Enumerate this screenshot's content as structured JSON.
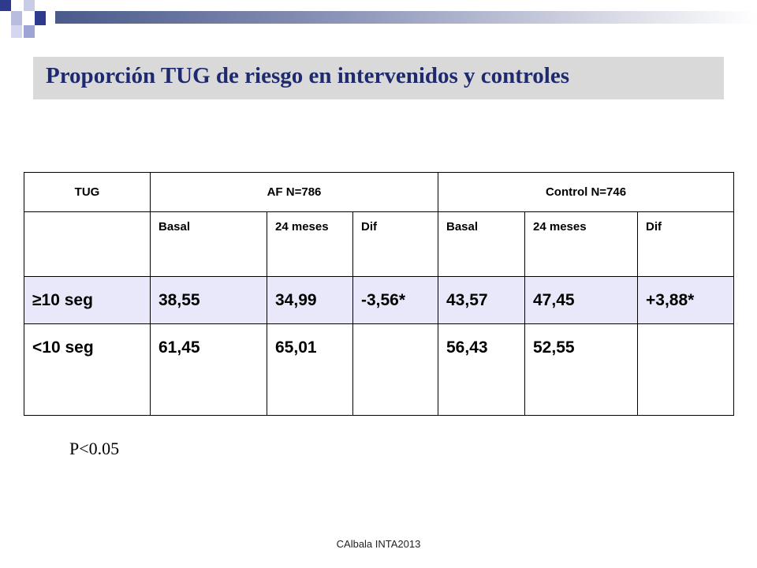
{
  "title": "Proporción TUG de riesgo en intervenidos y controles",
  "table": {
    "header": [
      "TUG",
      "AF N=786",
      "Control N=746"
    ],
    "subheader": [
      null,
      "Basal",
      "24 meses",
      "Dif",
      "Basal",
      "24 meses",
      "Dif"
    ],
    "rows": [
      [
        "≥10 seg",
        "38,55",
        "34,99",
        "-3,56*",
        "43,57",
        "47,45",
        "+3,88*"
      ],
      [
        "<10 seg",
        "61,45",
        "65,01",
        null,
        "56,43",
        "52,55",
        null
      ]
    ]
  },
  "note": "P<0.05",
  "footer": "CAlbala INTA2013"
}
